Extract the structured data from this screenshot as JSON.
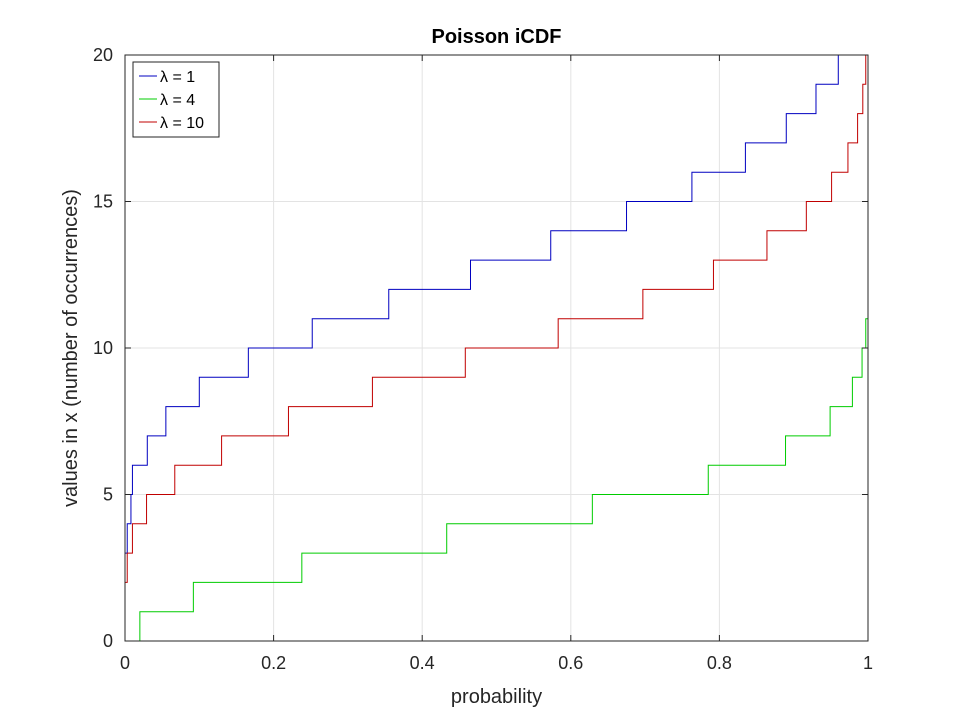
{
  "chart_data": {
    "type": "line",
    "title": "Poisson iCDF",
    "xlabel": "probability",
    "ylabel": "values in x (number of occurrences)",
    "xlim": [
      0,
      1
    ],
    "ylim": [
      0,
      20
    ],
    "xticks": [
      0,
      0.2,
      0.4,
      0.6,
      0.8,
      1
    ],
    "xtick_labels": [
      "0",
      "0.2",
      "0.4",
      "0.6",
      "0.8",
      "1"
    ],
    "yticks": [
      0,
      5,
      10,
      15,
      20
    ],
    "ytick_labels": [
      "0",
      "5",
      "10",
      "15",
      "20"
    ],
    "grid": true,
    "legend_position": "top-left",
    "series": [
      {
        "name": "λ = 1",
        "color": "#0000c0",
        "steps": [
          {
            "p": 0.0,
            "x": 3
          },
          {
            "p": 0.003,
            "x": 4
          },
          {
            "p": 0.008,
            "x": 5
          },
          {
            "p": 0.01,
            "x": 6
          },
          {
            "p": 0.03,
            "x": 7
          },
          {
            "p": 0.055,
            "x": 8
          },
          {
            "p": 0.1,
            "x": 9
          },
          {
            "p": 0.166,
            "x": 10
          },
          {
            "p": 0.252,
            "x": 11
          },
          {
            "p": 0.355,
            "x": 12
          },
          {
            "p": 0.465,
            "x": 13
          },
          {
            "p": 0.573,
            "x": 14
          },
          {
            "p": 0.675,
            "x": 15
          },
          {
            "p": 0.763,
            "x": 16
          },
          {
            "p": 0.835,
            "x": 17
          },
          {
            "p": 0.89,
            "x": 18
          },
          {
            "p": 0.93,
            "x": 19
          },
          {
            "p": 0.96,
            "x": 20
          }
        ]
      },
      {
        "name": "λ = 4",
        "color": "#00cc00",
        "steps": [
          {
            "p": 0.0,
            "x": 0
          },
          {
            "p": 0.02,
            "x": 1
          },
          {
            "p": 0.092,
            "x": 2
          },
          {
            "p": 0.238,
            "x": 3
          },
          {
            "p": 0.433,
            "x": 4
          },
          {
            "p": 0.629,
            "x": 5
          },
          {
            "p": 0.785,
            "x": 6
          },
          {
            "p": 0.889,
            "x": 7
          },
          {
            "p": 0.949,
            "x": 8
          },
          {
            "p": 0.979,
            "x": 9
          },
          {
            "p": 0.992,
            "x": 10
          },
          {
            "p": 0.997,
            "x": 11
          }
        ]
      },
      {
        "name": "λ = 10",
        "color": "#c00000",
        "steps": [
          {
            "p": 0.0,
            "x": 2
          },
          {
            "p": 0.003,
            "x": 3
          },
          {
            "p": 0.01,
            "x": 4
          },
          {
            "p": 0.029,
            "x": 5
          },
          {
            "p": 0.067,
            "x": 6
          },
          {
            "p": 0.13,
            "x": 7
          },
          {
            "p": 0.22,
            "x": 8
          },
          {
            "p": 0.333,
            "x": 9
          },
          {
            "p": 0.458,
            "x": 10
          },
          {
            "p": 0.583,
            "x": 11
          },
          {
            "p": 0.697,
            "x": 12
          },
          {
            "p": 0.792,
            "x": 13
          },
          {
            "p": 0.864,
            "x": 14
          },
          {
            "p": 0.917,
            "x": 15
          },
          {
            "p": 0.951,
            "x": 16
          },
          {
            "p": 0.973,
            "x": 17
          },
          {
            "p": 0.986,
            "x": 18
          },
          {
            "p": 0.993,
            "x": 19
          },
          {
            "p": 0.997,
            "x": 20
          }
        ]
      }
    ]
  }
}
